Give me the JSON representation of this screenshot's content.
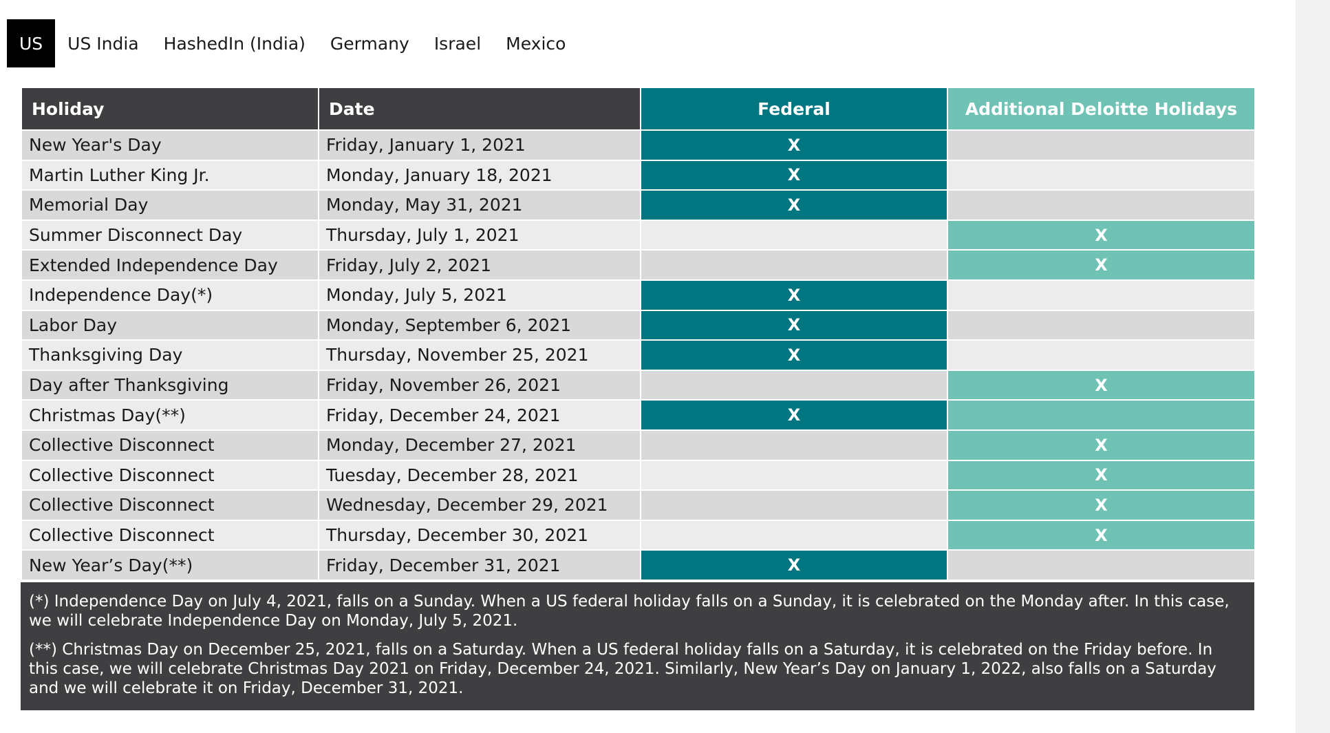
{
  "tabs": [
    {
      "label": "US",
      "active": true
    },
    {
      "label": "US India",
      "active": false
    },
    {
      "label": "HashedIn (India)",
      "active": false
    },
    {
      "label": "Germany",
      "active": false
    },
    {
      "label": "Israel",
      "active": false
    },
    {
      "label": "Mexico",
      "active": false
    }
  ],
  "table": {
    "headers": {
      "holiday": "Holiday",
      "date": "Date",
      "federal": "Federal",
      "additional": "Additional Deloitte Holidays"
    },
    "mark": "X",
    "rows": [
      {
        "holiday": "New Year's Day",
        "date": "Friday, January 1, 2021",
        "type": "federal"
      },
      {
        "holiday": "Martin Luther King Jr.",
        "date": "Monday, January 18, 2021",
        "type": "federal"
      },
      {
        "holiday": "Memorial Day",
        "date": "Monday, May 31, 2021",
        "type": "federal"
      },
      {
        "holiday": "Summer Disconnect Day",
        "date": "Thursday, July 1, 2021",
        "type": "additional"
      },
      {
        "holiday": "Extended Independence Day",
        "date": "Friday, July 2, 2021",
        "type": "additional"
      },
      {
        "holiday": "Independence Day(*)",
        "date": "Monday, July 5, 2021",
        "type": "federal"
      },
      {
        "holiday": "Labor Day",
        "date": "Monday, September 6, 2021",
        "type": "federal"
      },
      {
        "holiday": "Thanksgiving Day",
        "date": "Thursday, November 25, 2021",
        "type": "federal"
      },
      {
        "holiday": "Day after Thanksgiving",
        "date": "Friday, November 26, 2021",
        "type": "additional"
      },
      {
        "holiday": "Christmas Day(**)",
        "date": "Friday, December 24, 2021",
        "type": "federal-additional"
      },
      {
        "holiday": "Collective Disconnect",
        "date": "Monday, December 27, 2021",
        "type": "additional"
      },
      {
        "holiday": "Collective Disconnect",
        "date": "Tuesday, December 28, 2021",
        "type": "additional"
      },
      {
        "holiday": "Collective Disconnect",
        "date": "Wednesday, December 29, 2021",
        "type": "additional"
      },
      {
        "holiday": "Collective Disconnect",
        "date": "Thursday, December 30, 2021",
        "type": "additional"
      },
      {
        "holiday": "New Year’s Day(**)",
        "date": "Friday, December 31, 2021",
        "type": "federal"
      }
    ]
  },
  "notes": [
    "(*) Independence Day on July 4, 2021, falls on a Sunday. When a US federal holiday falls on a Sunday, it is celebrated on the Monday after. In this case, we will celebrate Independence Day on Monday, July 5, 2021.",
    "(**) Christmas Day on December 25, 2021, falls on a Saturday. When a US federal holiday falls on a Saturday, it is celebrated on the Friday before. In this case, we will celebrate Christmas Day 2021 on Friday, December 24, 2021. Similarly, New Year’s Day on January 1, 2022, also falls on a Saturday and we will celebrate it on Friday, December 31, 2021."
  ],
  "colors": {
    "header_dark": "#3f3f42",
    "federal": "#007681",
    "additional": "#6fc2b4",
    "row_odd": "#d9d9d9",
    "row_even": "#ececec"
  }
}
